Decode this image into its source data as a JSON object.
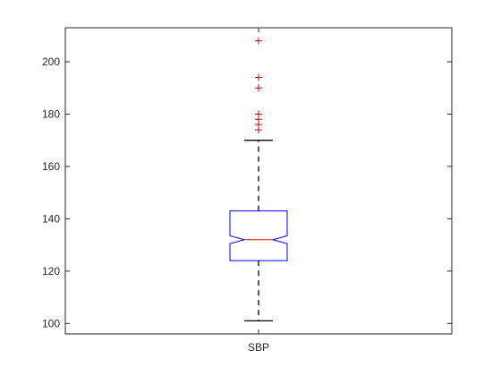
{
  "chart_data": {
    "type": "boxplot",
    "title": "",
    "xlabel": "",
    "ylabel": "",
    "categories": [
      "SBP"
    ],
    "ylim": [
      96,
      213
    ],
    "yticks": [
      100,
      120,
      140,
      160,
      180,
      200
    ],
    "notched": true,
    "boxes": [
      {
        "label": "SBP",
        "whisker_low": 101,
        "q1": 124,
        "notch_low": 130.5,
        "median": 132,
        "notch_high": 133.5,
        "q3": 143,
        "whisker_high": 170,
        "outliers": [
          174,
          176,
          178,
          180,
          190,
          194,
          208
        ]
      }
    ],
    "colors": {
      "box": "#0000ff",
      "median": "#ff0000",
      "outlier": "#cc0000",
      "whisker": "#000000",
      "axes": "#262626"
    }
  }
}
